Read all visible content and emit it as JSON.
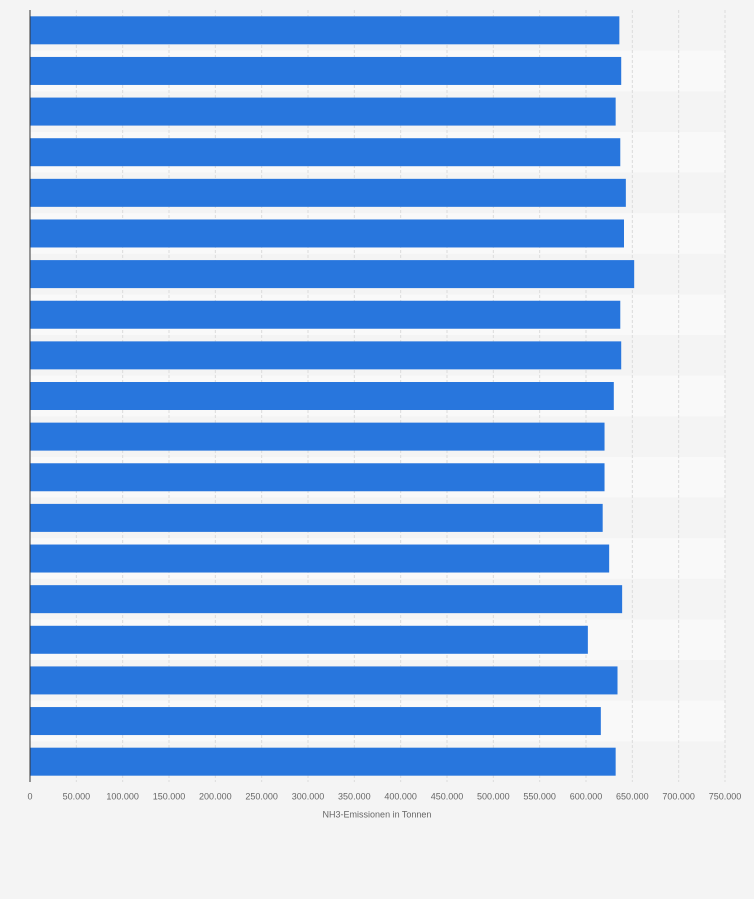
{
  "chart_data": {
    "type": "bar",
    "orientation": "horizontal",
    "x_label": "NH3-Emissionen in Tonnen",
    "categories": [
      null,
      null,
      null,
      null,
      null,
      null,
      null,
      null,
      null,
      null,
      null,
      null,
      null,
      null,
      null,
      null,
      null,
      null,
      null
    ],
    "values": [
      636000,
      638000,
      632000,
      637000,
      643000,
      641000,
      652000,
      637000,
      638000,
      630000,
      620000,
      620000,
      618000,
      625000,
      639000,
      602000,
      634000,
      616000,
      632000
    ],
    "color": "#2876dd",
    "xlim": [
      0,
      750000
    ],
    "xticks": [
      0,
      {
        "value": 50000,
        "label": "50.000"
      },
      {
        "value": 100000,
        "label": "100.000"
      },
      {
        "value": 150000,
        "label": "150.000"
      },
      {
        "value": 200000,
        "label": "200.000"
      },
      {
        "value": 250000,
        "label": "250.000"
      },
      {
        "value": 300000,
        "label": "300.000"
      },
      {
        "value": 350000,
        "label": "350.000"
      },
      {
        "value": 400000,
        "label": "400.000"
      },
      {
        "value": 450000,
        "label": "450.000"
      },
      {
        "value": 500000,
        "label": "500.000"
      },
      {
        "value": 550000,
        "label": "550.000"
      },
      {
        "value": 600000,
        "label": "600.000"
      },
      {
        "value": 650000,
        "label": "650.000"
      },
      {
        "value": 700000,
        "label": "700.000"
      },
      {
        "value": 750000,
        "label": "750.000"
      }
    ],
    "grid": true
  }
}
